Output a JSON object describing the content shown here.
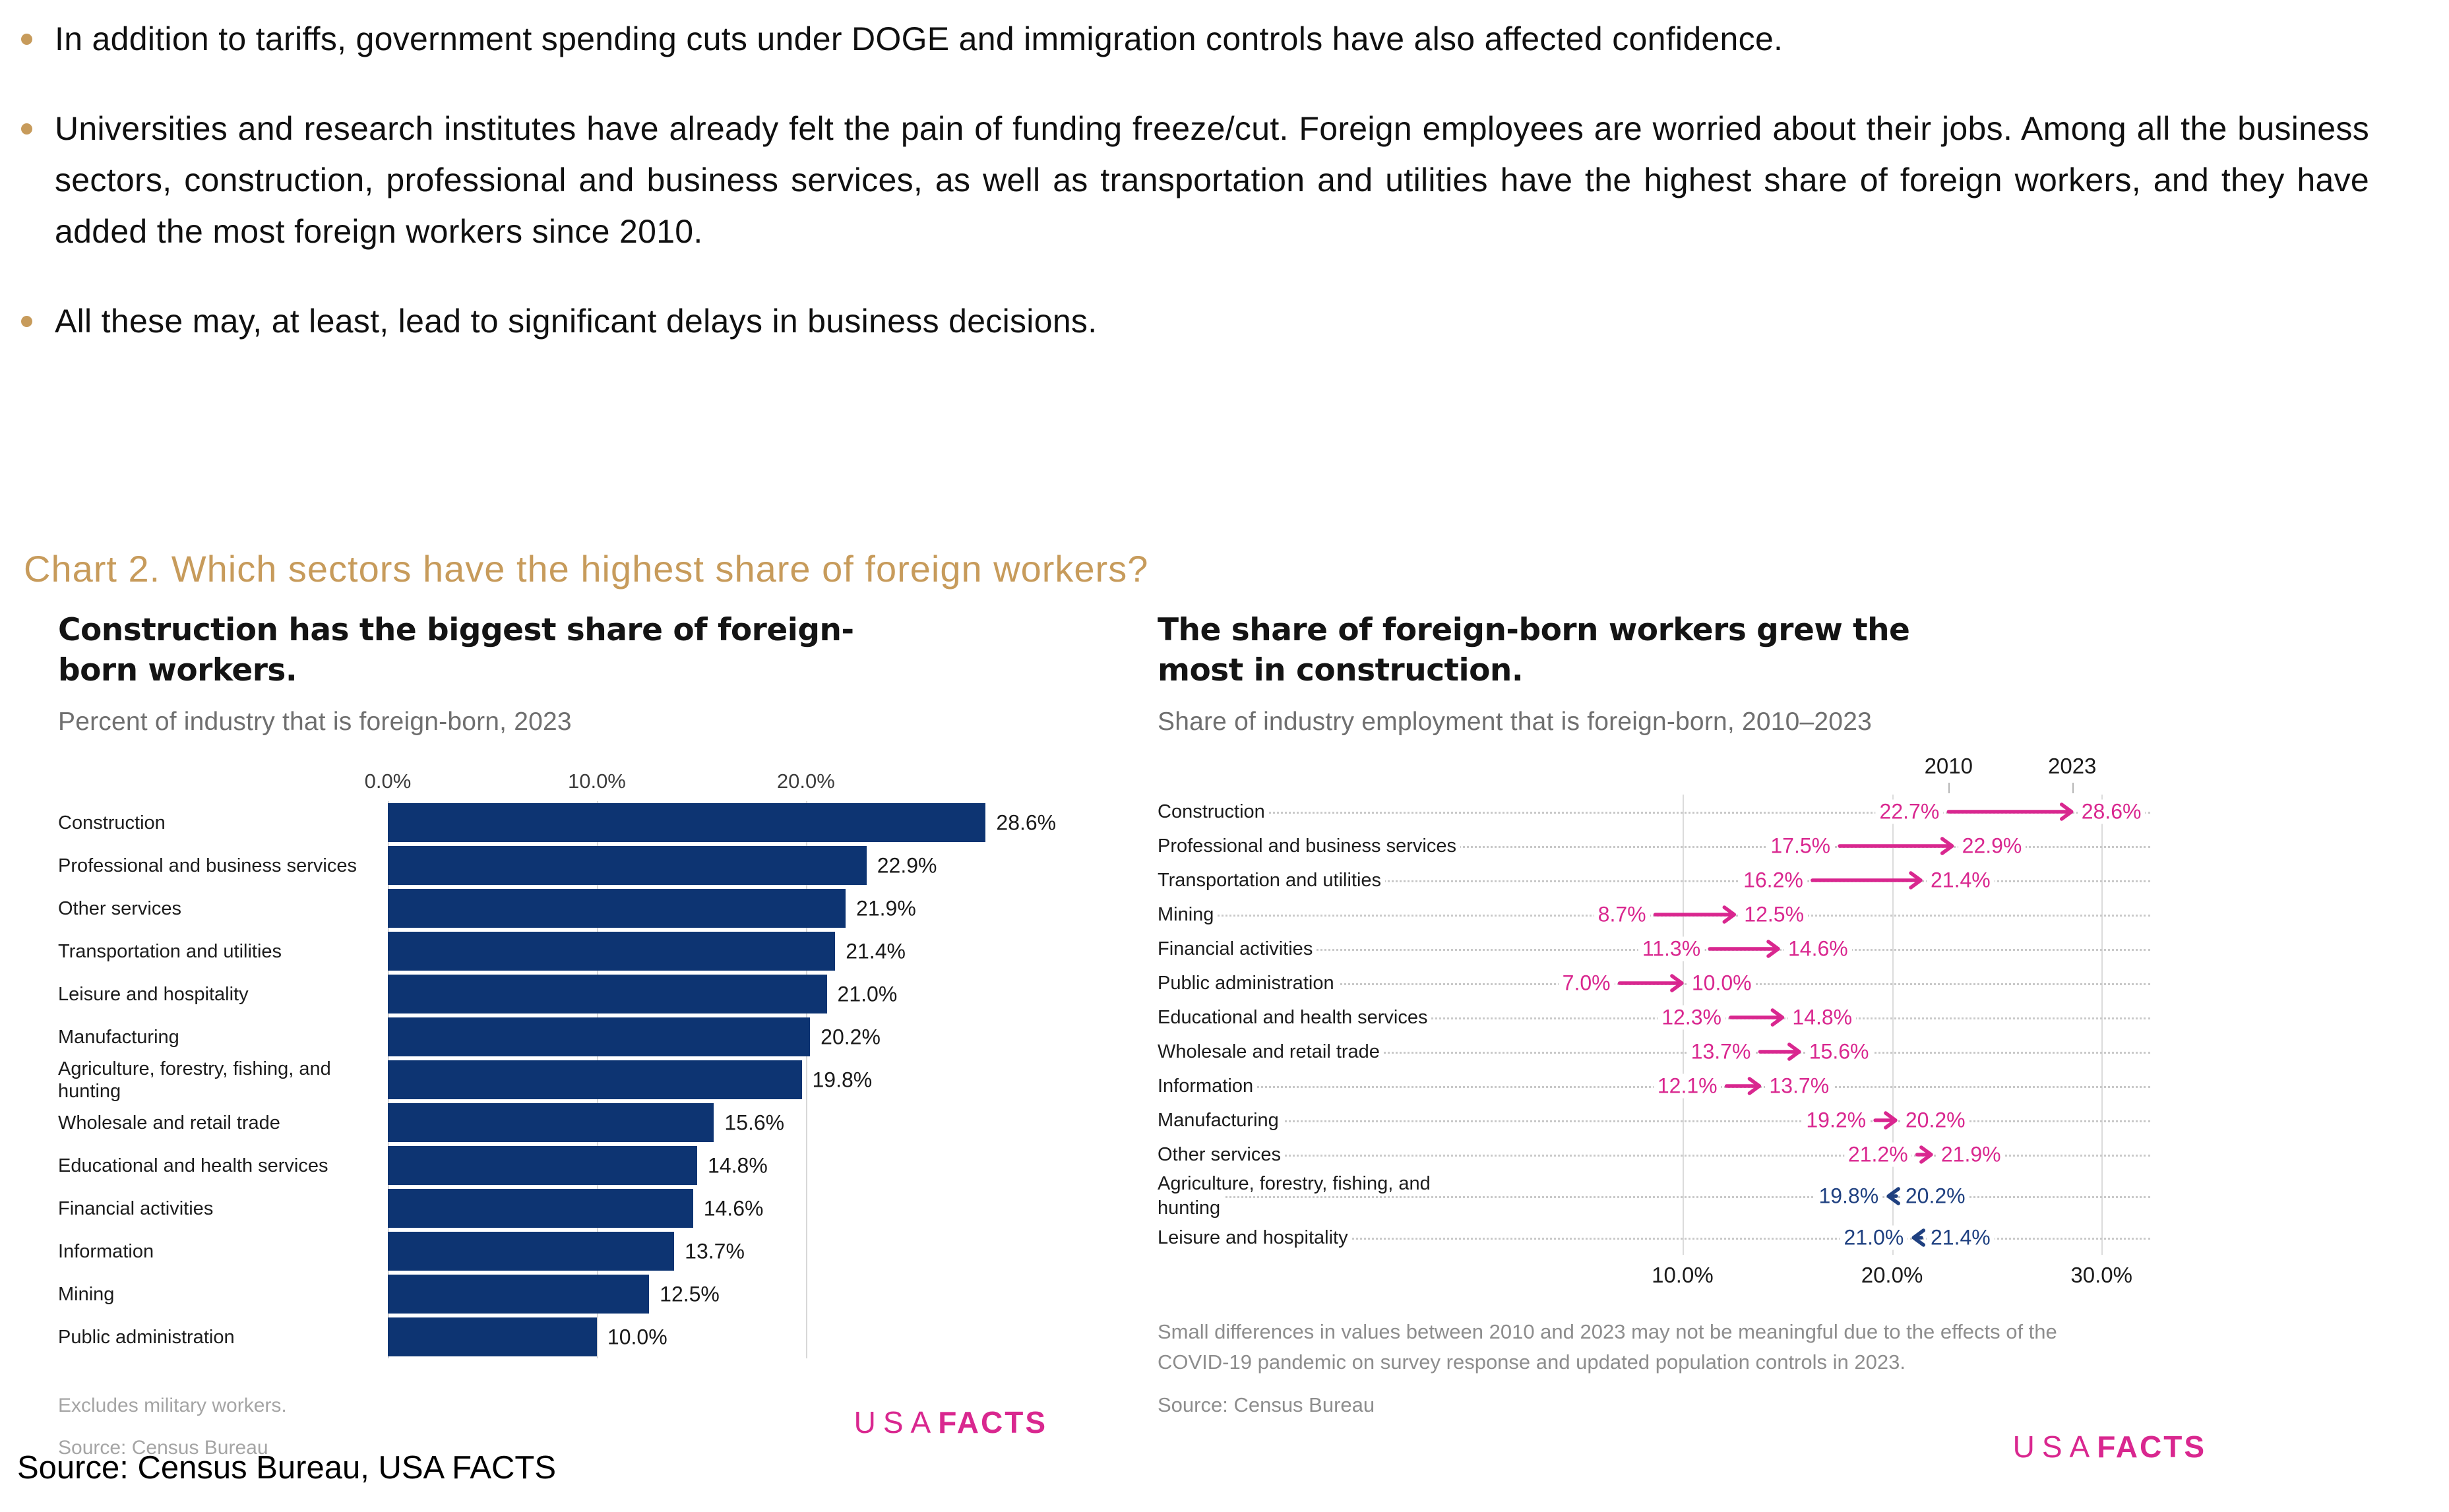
{
  "page": {
    "bullets": [
      "In addition to tariffs, government spending cuts under DOGE and immigration controls have also affected confidence.",
      "Universities and research institutes have already felt the pain of funding freeze/cut. Foreign employees are worried about their jobs. Among all the business sectors, construction, professional and business services, as well as transportation and utilities have the highest share of foreign workers, and they have added the most foreign workers since 2010.",
      "All these may, at least, lead to significant delays in business decisions."
    ],
    "section_heading": "Chart 2. Which sectors have the highest share of foreign workers?",
    "bottom_source": "Source: Census Bureau, USA FACTS",
    "accent_gold": "#C79B5B"
  },
  "chart_data": [
    {
      "type": "bar",
      "orientation": "horizontal",
      "title": "Construction has the biggest share of foreign-born workers.",
      "subtitle": "Percent of industry that is foreign-born, 2023",
      "categories": [
        "Construction",
        "Professional and business services",
        "Other services",
        "Transportation and utilities",
        "Leisure and hospitality",
        "Manufacturing",
        "Agriculture, forestry, fishing, and hunting",
        "Wholesale and retail trade",
        "Educational and health services",
        "Financial activities",
        "Information",
        "Mining",
        "Public administration"
      ],
      "values": [
        28.6,
        22.9,
        21.9,
        21.4,
        21.0,
        20.2,
        19.8,
        15.6,
        14.8,
        14.6,
        13.7,
        12.5,
        10.0
      ],
      "value_labels": [
        "28.6%",
        "22.9%",
        "21.9%",
        "21.4%",
        "21.0%",
        "20.2%",
        "19.8%",
        "15.6%",
        "14.8%",
        "14.6%",
        "13.7%",
        "12.5%",
        "10.0%"
      ],
      "x_ticks": [
        "0.0%",
        "10.0%",
        "20.0%"
      ],
      "x_tick_values": [
        0,
        10,
        20
      ],
      "xlim": [
        0,
        32.5
      ],
      "grid": true,
      "bar_color": "#0D3472",
      "footnotes": [
        "Excludes military workers.",
        "Source: Census Bureau"
      ],
      "logo": {
        "light": "USA",
        "bold": "FACTS"
      }
    },
    {
      "type": "dumbbell-arrow",
      "title": "The share of foreign-born workers grew the most in construction.",
      "subtitle": "Share of industry employment that is foreign-born, 2010–2023",
      "col_headers": [
        "2010",
        "2023"
      ],
      "rows": [
        {
          "label": "Construction",
          "start": 22.7,
          "end": 28.6,
          "start_label": "22.7%",
          "end_label": "28.6%",
          "direction": "up"
        },
        {
          "label": "Professional and business services",
          "start": 17.5,
          "end": 22.9,
          "start_label": "17.5%",
          "end_label": "22.9%",
          "direction": "up"
        },
        {
          "label": "Transportation and utilities",
          "start": 16.2,
          "end": 21.4,
          "start_label": "16.2%",
          "end_label": "21.4%",
          "direction": "up"
        },
        {
          "label": "Mining",
          "start": 8.7,
          "end": 12.5,
          "start_label": "8.7%",
          "end_label": "12.5%",
          "direction": "up"
        },
        {
          "label": "Financial activities",
          "start": 11.3,
          "end": 14.6,
          "start_label": "11.3%",
          "end_label": "14.6%",
          "direction": "up"
        },
        {
          "label": "Public administration",
          "start": 7.0,
          "end": 10.0,
          "start_label": "7.0%",
          "end_label": "10.0%",
          "direction": "up"
        },
        {
          "label": "Educational and health services",
          "start": 12.3,
          "end": 14.8,
          "start_label": "12.3%",
          "end_label": "14.8%",
          "direction": "up"
        },
        {
          "label": "Wholesale and retail trade",
          "start": 13.7,
          "end": 15.6,
          "start_label": "13.7%",
          "end_label": "15.6%",
          "direction": "up"
        },
        {
          "label": "Information",
          "start": 12.1,
          "end": 13.7,
          "start_label": "12.1%",
          "end_label": "13.7%",
          "direction": "up"
        },
        {
          "label": "Manufacturing",
          "start": 19.2,
          "end": 20.2,
          "start_label": "19.2%",
          "end_label": "20.2%",
          "direction": "up"
        },
        {
          "label": "Other services",
          "start": 21.2,
          "end": 21.9,
          "start_label": "21.2%",
          "end_label": "21.9%",
          "direction": "up"
        },
        {
          "label": "Agriculture, forestry, fishing, and hunting",
          "start": 20.2,
          "end": 19.8,
          "start_label": "20.2%",
          "end_label": "19.8%",
          "direction": "down"
        },
        {
          "label": "Leisure and hospitality",
          "start": 21.4,
          "end": 21.0,
          "start_label": "21.4%",
          "end_label": "21.0%",
          "direction": "down"
        }
      ],
      "x_ticks": [
        "10.0%",
        "20.0%",
        "30.0%"
      ],
      "x_tick_values": [
        10,
        20,
        30
      ],
      "xlim": [
        1,
        35
      ],
      "grid": true,
      "up_color": "#D9278F",
      "down_color": "#1F4080",
      "footnote": "Small differences in values between 2010 and 2023 may not be meaningful due to the effects of the COVID-19 pandemic on survey response and updated population controls in 2023.",
      "source": "Source: Census Bureau",
      "logo": {
        "light": "USA",
        "bold": "FACTS"
      }
    }
  ]
}
